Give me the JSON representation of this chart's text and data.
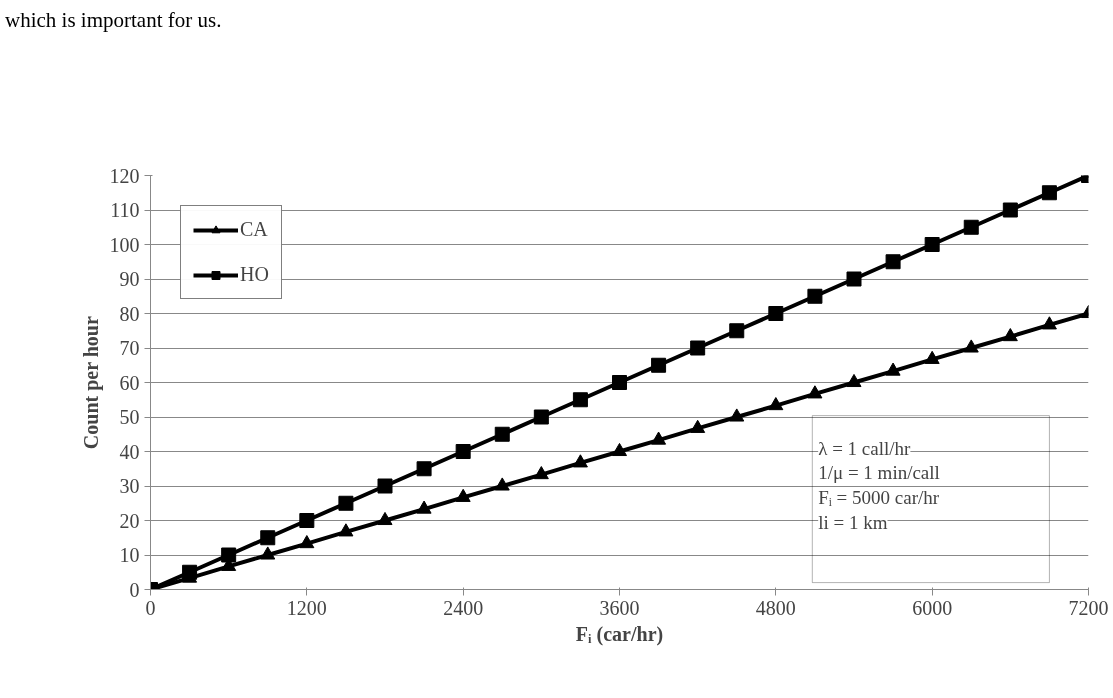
{
  "chart_data": {
    "type": "line",
    "xlabel": "Fᵢ (car/hr)",
    "ylabel": "Count per hour",
    "x": [
      0,
      300,
      600,
      900,
      1200,
      1500,
      1800,
      2100,
      2400,
      2700,
      3000,
      3300,
      3600,
      3900,
      4200,
      4500,
      4800,
      5100,
      5400,
      5700,
      6000,
      6300,
      6600,
      6900,
      7200
    ],
    "series": [
      {
        "name": "CA",
        "color": "#000000",
        "marker": "triangle",
        "values": [
          0,
          3.3,
          6.7,
          10,
          13.3,
          16.7,
          20,
          23.3,
          26.7,
          30,
          33.3,
          36.7,
          40,
          43.3,
          46.7,
          50,
          53.3,
          56.7,
          60,
          63.3,
          66.7,
          70,
          73.3,
          76.7,
          80
        ]
      },
      {
        "name": "HO",
        "color": "#000000",
        "marker": "square",
        "values": [
          0,
          5,
          10,
          15,
          20,
          25,
          30,
          35,
          40,
          45,
          50,
          55,
          60,
          65,
          70,
          75,
          80,
          85,
          90,
          95,
          100,
          105,
          110,
          115,
          120
        ]
      }
    ],
    "xlim": [
      0,
      7200
    ],
    "xticks": [
      0,
      1200,
      2400,
      3600,
      4800,
      6000,
      7200
    ],
    "ylim": [
      0,
      120
    ],
    "yticks": [
      0,
      10,
      20,
      30,
      40,
      50,
      60,
      70,
      80,
      90,
      100,
      110,
      120
    ],
    "grid": "y",
    "legend": "top left",
    "line_style": "solid",
    "annotations": [
      "which is important for us.",
      "λ = 1 call/hr",
      "1/μ = 1 min/call",
      "Fᵢ = 5000 car/hr",
      "li = 1 km"
    ]
  }
}
